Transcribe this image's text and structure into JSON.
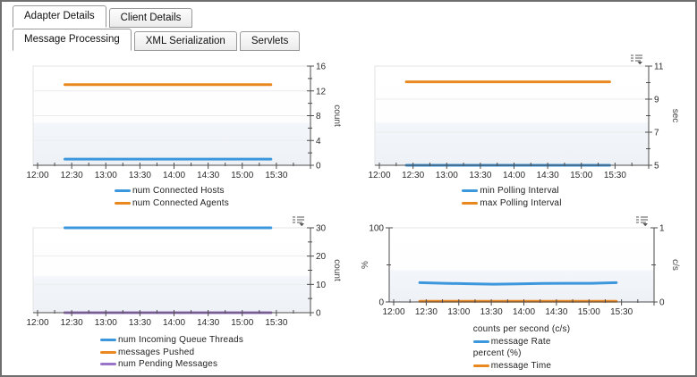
{
  "tabs": {
    "outer": [
      {
        "label": "Adapter Details",
        "active": true
      },
      {
        "label": "Client Details",
        "active": false
      }
    ],
    "inner": [
      {
        "label": "Message Processing",
        "active": true
      },
      {
        "label": "XML Serialization",
        "active": false
      },
      {
        "label": "Servlets",
        "active": false
      }
    ]
  },
  "colors": {
    "series_blue": "#3d97dc",
    "series_orange": "#e8881e",
    "series_purple": "#9b74c9",
    "axis": "#4d4d4d",
    "grid": "#ececec",
    "plot_band": "#eef1f6"
  },
  "chart_data": [
    {
      "name": "connections-chart",
      "type": "line",
      "title": "",
      "x_tick_labels": [
        "12:00",
        "12:30",
        "13:00",
        "13:30",
        "14:00",
        "14:30",
        "15:00",
        "15:30"
      ],
      "x_axis_range_hours": [
        12,
        16
      ],
      "data_span_hours": [
        12.4,
        15.42
      ],
      "axes": {
        "right": {
          "label": "count",
          "min": 0,
          "max": 16,
          "major": [
            0,
            4,
            8,
            12,
            16
          ],
          "minor_step": 2
        }
      },
      "series": [
        {
          "name": "num Connected Hosts",
          "color": "#3d97dc",
          "axis": "right",
          "values": [
            1,
            1
          ]
        },
        {
          "name": "num Connected Agents",
          "color": "#e8881e",
          "axis": "right",
          "values": [
            13,
            13
          ]
        }
      ],
      "legend": [
        {
          "type": "item",
          "label": "num Connected Hosts",
          "color": "#3d97dc"
        },
        {
          "type": "item",
          "label": "num Connected Agents",
          "color": "#e8881e"
        }
      ],
      "menu_icon": false
    },
    {
      "name": "polling-interval-chart",
      "type": "line",
      "title": "",
      "x_tick_labels": [
        "12:00",
        "12:30",
        "13:00",
        "13:30",
        "14:00",
        "14:30",
        "15:00",
        "15:30"
      ],
      "x_axis_range_hours": [
        12,
        16
      ],
      "data_span_hours": [
        12.4,
        15.42
      ],
      "axes": {
        "right": {
          "label": "sec",
          "min": 5,
          "max": 11,
          "major": [
            5,
            7,
            9,
            11
          ],
          "minor_step": 1
        }
      },
      "series": [
        {
          "name": "min Polling Interval",
          "color": "#3d97dc",
          "axis": "right",
          "values": [
            5,
            5
          ]
        },
        {
          "name": "max Polling Interval",
          "color": "#e8881e",
          "axis": "right",
          "values": [
            10.05,
            10.05
          ]
        }
      ],
      "legend": [
        {
          "type": "item",
          "label": "min Polling Interval",
          "color": "#3d97dc"
        },
        {
          "type": "item",
          "label": "max Polling Interval",
          "color": "#e8881e"
        }
      ],
      "menu_icon": true
    },
    {
      "name": "queue-messages-chart",
      "type": "line",
      "title": "",
      "x_tick_labels": [
        "12:00",
        "12:30",
        "13:00",
        "13:30",
        "14:00",
        "14:30",
        "15:00",
        "15:30"
      ],
      "x_axis_range_hours": [
        12,
        16
      ],
      "data_span_hours": [
        12.4,
        15.42
      ],
      "axes": {
        "right": {
          "label": "count",
          "min": 0,
          "max": 30,
          "major": [
            0,
            10,
            20,
            30
          ],
          "minor_step": 5
        }
      },
      "series": [
        {
          "name": "num Incoming Queue Threads",
          "color": "#3d97dc",
          "axis": "right",
          "values": [
            30,
            30
          ]
        },
        {
          "name": "messages Pushed",
          "color": "#e8881e",
          "axis": "right",
          "values": [
            0,
            0
          ]
        },
        {
          "name": "num Pending Messages",
          "color": "#9b74c9",
          "axis": "right",
          "values": [
            0,
            0
          ]
        }
      ],
      "legend": [
        {
          "type": "item",
          "label": "num Incoming Queue Threads",
          "color": "#3d97dc"
        },
        {
          "type": "item",
          "label": "messages Pushed",
          "color": "#e8881e"
        },
        {
          "type": "item",
          "label": "num Pending Messages",
          "color": "#9b74c9"
        }
      ],
      "menu_icon": true
    },
    {
      "name": "message-rate-chart",
      "type": "line",
      "title": "",
      "x_tick_labels": [
        "12:00",
        "12:30",
        "13:00",
        "13:30",
        "14:00",
        "14:30",
        "15:00",
        "15:30"
      ],
      "x_axis_range_hours": [
        12,
        16
      ],
      "data_span_hours": [
        12.4,
        15.42
      ],
      "axes": {
        "left": {
          "label": "%",
          "min": 0,
          "max": 100,
          "major": [
            0,
            100
          ],
          "minor_step": 50
        },
        "right": {
          "label": "c/s",
          "min": 0,
          "max": 1,
          "major": [
            0,
            1
          ],
          "minor_step": 0.5
        }
      },
      "series": [
        {
          "name": "message Rate",
          "color": "#3d97dc",
          "axis": "right",
          "values": [
            0.26,
            0.252,
            0.246,
            0.24,
            0.243,
            0.25,
            0.252,
            0.252,
            0.26
          ]
        },
        {
          "name": "message Time",
          "color": "#e8881e",
          "axis": "left",
          "values": [
            1,
            1
          ]
        }
      ],
      "legend": [
        {
          "type": "group",
          "label": "counts per second (c/s)"
        },
        {
          "type": "item",
          "label": "message Rate",
          "color": "#3d97dc"
        },
        {
          "type": "group",
          "label": "percent (%)"
        },
        {
          "type": "item",
          "label": "message Time",
          "color": "#e8881e"
        }
      ],
      "menu_icon": true
    }
  ]
}
